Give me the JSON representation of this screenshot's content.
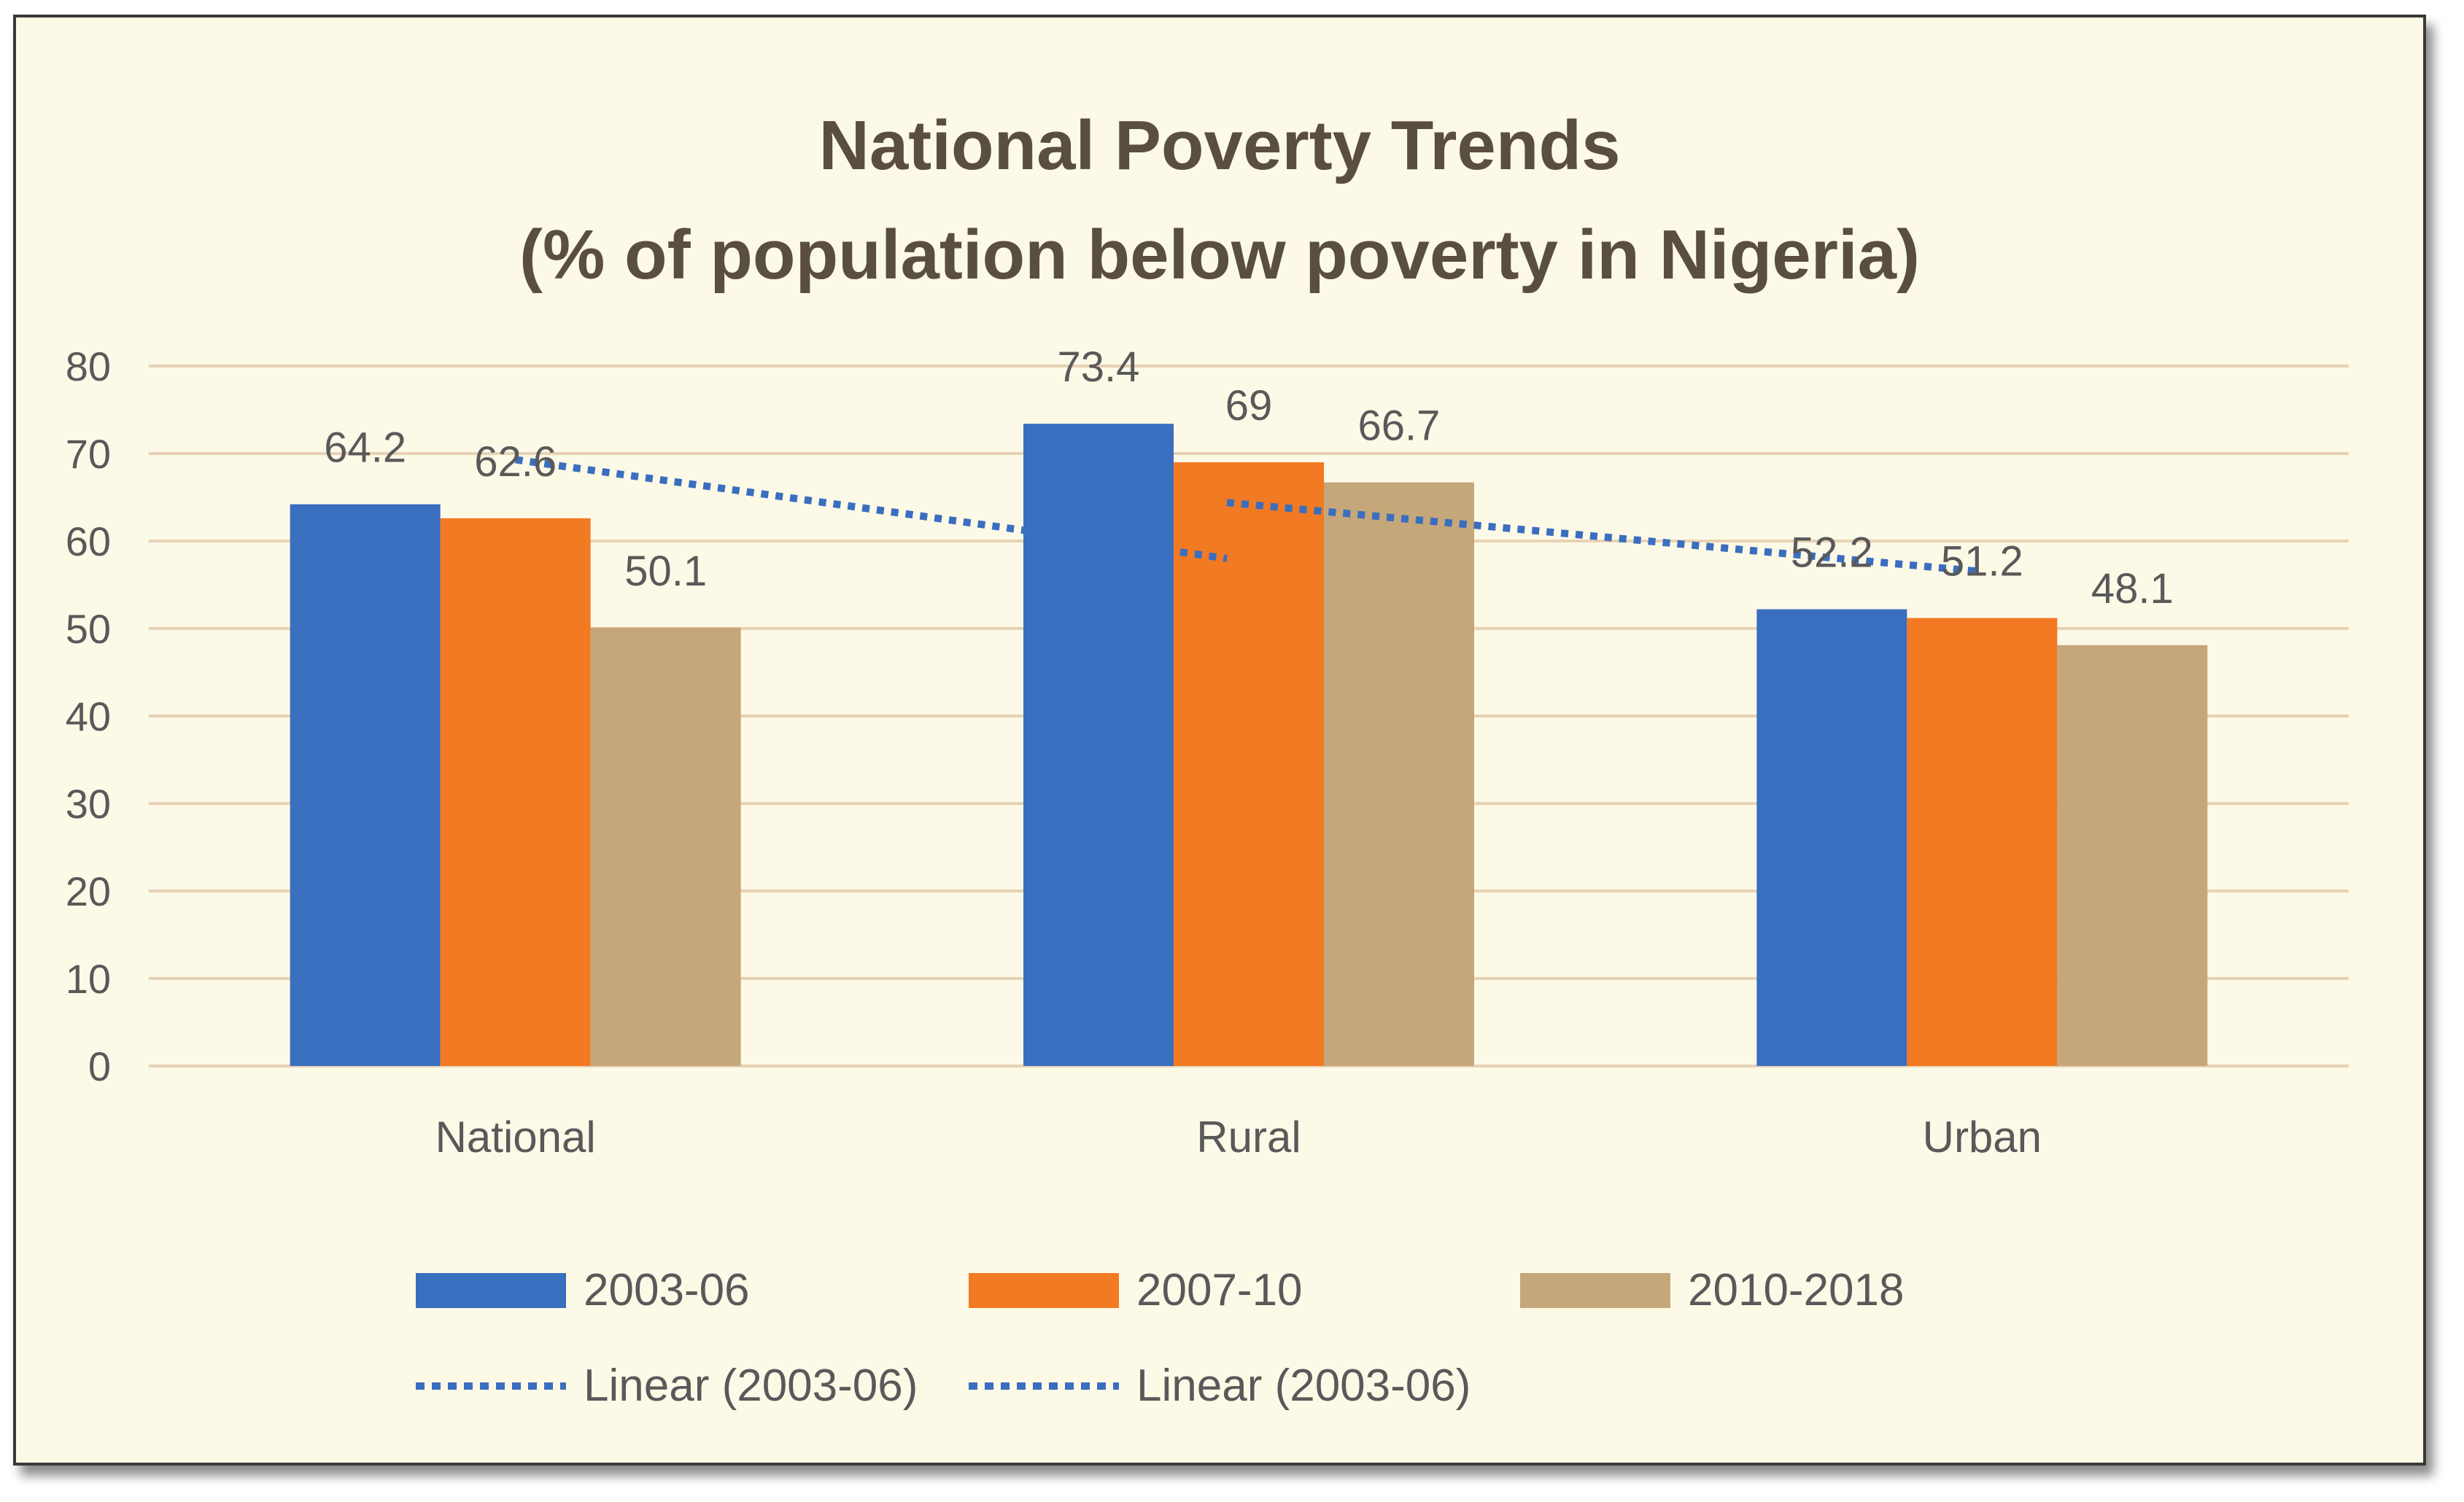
{
  "chart_data": {
    "type": "bar",
    "title": "National Poverty Trends",
    "subtitle": "(% of population below poverty in Nigeria)",
    "categories": [
      "National",
      "Rural",
      "Urban"
    ],
    "series": [
      {
        "name": "2003-06",
        "values": [
          64.2,
          73.4,
          52.2
        ],
        "color": "#3a6ebf"
      },
      {
        "name": "2007-10",
        "values": [
          62.6,
          69,
          51.2
        ],
        "color": "#f27a22"
      },
      {
        "name": "2010-2018",
        "values": [
          50.1,
          66.7,
          48.1
        ],
        "color": "#c5a77a"
      }
    ],
    "data_labels": [
      [
        "64.2",
        "73.4",
        "52.2"
      ],
      [
        "62.6",
        "69",
        "51.2"
      ],
      [
        "50.1",
        "66.7",
        "48.1"
      ]
    ],
    "y_ticks": [
      "0",
      "10",
      "20",
      "30",
      "40",
      "50",
      "60",
      "70",
      "80"
    ],
    "ylim": [
      0,
      80
    ],
    "grid": true,
    "xlabel": "",
    "ylabel": "",
    "trendlines": [
      {
        "name": "Linear (2003-06)",
        "type": "linear",
        "series": "2003-06",
        "color": "#3a6ebf",
        "style": "dotted",
        "start_value": 69.3,
        "end_value": 58
      },
      {
        "name": "Linear (2003-06)",
        "type": "linear",
        "series": "2003-06",
        "color": "#3a6ebf",
        "style": "dotted",
        "start_value": 64.4,
        "end_value": 56.5
      }
    ],
    "legend_position": "bottom"
  }
}
